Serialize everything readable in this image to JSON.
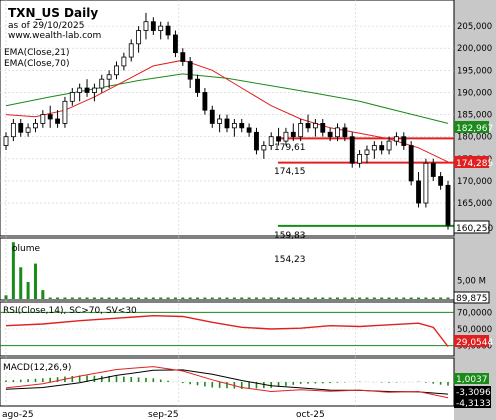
{
  "header": {
    "title": "TXN_US Daily",
    "date": "as of 29/10/2025",
    "site": "www.wealth-lab.com"
  },
  "price_panel": {
    "legend": [
      "EMA(Close,21)",
      "EMA(Close,70)"
    ],
    "annotations": [
      "179,61",
      "174,15",
      "159,83"
    ],
    "axis_ticks": [
      "205,000",
      "200,000",
      "195,000",
      "190,000",
      "185,000",
      "180,000",
      "175,000",
      "170,000",
      "165,000"
    ],
    "price_tags": [
      {
        "label": "182,967",
        "color": "#1a8a1a"
      },
      {
        "label": "174,285",
        "color": "#e02020"
      },
      {
        "label": "160,250",
        "color": "#000000"
      }
    ],
    "colors": {
      "ema21": "#e02020",
      "ema70": "#1a8a1a",
      "level_line_red": "#e02020",
      "level_line_green": "#1a8a1a",
      "candle": "#000000"
    }
  },
  "volume_panel": {
    "label": "olume",
    "annotation": "154,23",
    "axis_ticks": [
      "5,00 M"
    ],
    "tag": "89,875"
  },
  "rsi_panel": {
    "label": "RSI(Close,14), SC>70, SV<30",
    "axis_ticks": [
      "70,0000",
      "50,0000",
      "30,0000"
    ],
    "tag": "29,0544",
    "colors": {
      "line": "#e02020",
      "bands": "#1a8a1a"
    }
  },
  "macd_panel": {
    "label": "MACD(12,26,9)",
    "tags": [
      {
        "label": "1,0037",
        "color": "#1a8a1a"
      },
      {
        "label": "-3,3096",
        "color": "#ffffff"
      },
      {
        "label": "-4,3133",
        "color": "#ffffff"
      }
    ]
  },
  "x_axis": {
    "labels": [
      "ago-25",
      "sep-25",
      "oct-25"
    ]
  },
  "chart_data": {
    "type": "candlestick",
    "title": "TXN_US Daily",
    "y_range": [
      158,
      210
    ],
    "candles": [
      [
        178,
        181,
        177,
        180
      ],
      [
        180,
        184,
        179,
        183
      ],
      [
        183,
        184,
        180,
        181
      ],
      [
        181,
        183,
        180,
        182
      ],
      [
        182,
        184,
        181,
        183
      ],
      [
        183,
        186,
        182,
        185
      ],
      [
        185,
        187,
        182,
        184
      ],
      [
        184,
        186,
        182,
        183
      ],
      [
        183,
        189,
        182,
        188
      ],
      [
        188,
        191,
        187,
        190
      ],
      [
        190,
        192,
        188,
        191
      ],
      [
        191,
        193,
        189,
        190
      ],
      [
        190,
        192,
        188,
        191
      ],
      [
        191,
        194,
        190,
        193
      ],
      [
        193,
        195,
        191,
        194
      ],
      [
        194,
        197,
        193,
        196
      ],
      [
        196,
        199,
        195,
        198
      ],
      [
        198,
        202,
        197,
        201
      ],
      [
        201,
        205,
        199,
        204
      ],
      [
        204,
        208,
        202,
        206
      ],
      [
        206,
        207,
        203,
        204
      ],
      [
        204,
        206,
        202,
        205
      ],
      [
        205,
        206,
        202,
        203
      ],
      [
        203,
        204,
        198,
        199
      ],
      [
        199,
        200,
        196,
        197
      ],
      [
        197,
        198,
        191,
        193
      ],
      [
        193,
        194,
        189,
        190
      ],
      [
        190,
        191,
        185,
        186
      ],
      [
        186,
        187,
        182,
        183
      ],
      [
        183,
        185,
        181,
        184
      ],
      [
        184,
        185,
        181,
        182
      ],
      [
        182,
        184,
        180,
        183
      ],
      [
        183,
        184,
        181,
        182
      ],
      [
        182,
        183,
        180,
        181
      ],
      [
        181,
        182,
        176,
        177
      ],
      [
        177,
        179,
        175,
        178
      ],
      [
        178,
        181,
        177,
        180
      ],
      [
        180,
        182,
        178,
        179
      ],
      [
        179,
        182,
        178,
        181
      ],
      [
        181,
        183,
        179,
        180
      ],
      [
        180,
        184,
        179,
        183
      ],
      [
        183,
        185,
        181,
        182
      ],
      [
        182,
        184,
        180,
        183
      ],
      [
        183,
        184,
        180,
        181
      ],
      [
        181,
        182,
        179,
        180
      ],
      [
        180,
        183,
        179,
        182
      ],
      [
        182,
        183,
        179,
        180
      ],
      [
        180,
        181,
        173,
        174
      ],
      [
        174,
        177,
        173,
        176
      ],
      [
        176,
        178,
        174,
        177
      ],
      [
        177,
        179,
        175,
        178
      ],
      [
        178,
        179,
        176,
        177
      ],
      [
        177,
        180,
        176,
        179
      ],
      [
        179,
        181,
        178,
        180
      ],
      [
        180,
        181,
        177,
        178
      ],
      [
        178,
        179,
        169,
        170
      ],
      [
        170,
        172,
        164,
        165
      ],
      [
        165,
        175,
        164,
        174
      ],
      [
        174,
        175,
        170,
        171
      ],
      [
        171,
        172,
        168,
        169
      ],
      [
        169,
        170,
        159,
        160
      ]
    ],
    "ema21": [
      [
        0,
        185
      ],
      [
        4,
        184.5
      ],
      [
        8,
        186
      ],
      [
        12,
        189
      ],
      [
        16,
        192.5
      ],
      [
        20,
        196
      ],
      [
        24,
        197.3
      ],
      [
        28,
        195
      ],
      [
        32,
        191
      ],
      [
        36,
        187
      ],
      [
        40,
        184
      ],
      [
        44,
        182
      ],
      [
        48,
        180.8
      ],
      [
        52,
        179.5
      ],
      [
        56,
        177.5
      ],
      [
        60,
        174.3
      ]
    ],
    "ema70": [
      [
        0,
        187
      ],
      [
        6,
        189
      ],
      [
        12,
        190.8
      ],
      [
        18,
        192.7
      ],
      [
        24,
        194.2
      ],
      [
        30,
        193.2
      ],
      [
        36,
        191.5
      ],
      [
        42,
        189.8
      ],
      [
        48,
        188
      ],
      [
        54,
        185.5
      ],
      [
        60,
        183
      ]
    ],
    "levels": [
      {
        "value": 179.61,
        "color": "#e02020"
      },
      {
        "value": 174.15,
        "color": "#e02020"
      },
      {
        "value": 159.83,
        "color": "#1a8a1a"
      }
    ],
    "volume": [
      [
        0,
        1.0
      ],
      [
        1,
        15.4
      ],
      [
        2,
        8.6
      ],
      [
        3,
        4.6
      ],
      [
        4,
        9.6
      ],
      [
        5,
        2.4
      ],
      [
        6,
        0.4
      ],
      [
        7,
        0.4
      ],
      [
        8,
        0.4
      ],
      [
        9,
        0.4
      ],
      [
        10,
        0.4
      ],
      [
        11,
        0.4
      ],
      [
        12,
        0.4
      ],
      [
        13,
        0.4
      ],
      [
        14,
        0.4
      ],
      [
        15,
        0.4
      ],
      [
        16,
        0.4
      ],
      [
        17,
        0.4
      ],
      [
        18,
        0.4
      ],
      [
        19,
        0.4
      ],
      [
        20,
        0.4
      ],
      [
        21,
        0.4
      ],
      [
        22,
        0.4
      ],
      [
        23,
        0.4
      ],
      [
        24,
        0.4
      ],
      [
        25,
        0.4
      ],
      [
        26,
        0.4
      ],
      [
        27,
        0.4
      ],
      [
        28,
        0.4
      ],
      [
        29,
        0.4
      ],
      [
        30,
        0.4
      ],
      [
        31,
        0.4
      ],
      [
        32,
        0.4
      ],
      [
        33,
        0.4
      ],
      [
        34,
        0.4
      ],
      [
        35,
        0.4
      ],
      [
        36,
        0.4
      ],
      [
        37,
        0.4
      ],
      [
        38,
        0.4
      ],
      [
        39,
        0.4
      ],
      [
        40,
        0.4
      ],
      [
        41,
        0.4
      ],
      [
        42,
        0.4
      ],
      [
        43,
        0.4
      ],
      [
        44,
        0.4
      ],
      [
        45,
        0.4
      ],
      [
        46,
        0.4
      ],
      [
        47,
        0.4
      ],
      [
        48,
        0.4
      ],
      [
        49,
        0.4
      ],
      [
        50,
        0.4
      ],
      [
        51,
        0.4
      ],
      [
        52,
        0.4
      ],
      [
        53,
        0.4
      ],
      [
        54,
        0.4
      ],
      [
        55,
        0.4
      ],
      [
        56,
        0.4
      ],
      [
        57,
        0.4
      ],
      [
        58,
        0.4
      ],
      [
        59,
        0.4
      ],
      [
        60,
        0.4
      ]
    ],
    "volume_range": [
      0,
      16
    ],
    "rsi": [
      [
        0,
        54
      ],
      [
        5,
        56
      ],
      [
        10,
        60
      ],
      [
        15,
        63
      ],
      [
        20,
        66
      ],
      [
        24,
        65
      ],
      [
        28,
        58
      ],
      [
        32,
        52
      ],
      [
        36,
        50
      ],
      [
        40,
        51
      ],
      [
        44,
        54
      ],
      [
        48,
        53
      ],
      [
        52,
        55
      ],
      [
        56,
        57
      ],
      [
        58,
        52
      ],
      [
        60,
        29.05
      ]
    ],
    "rsi_range": [
      20,
      80
    ],
    "macd": [
      [
        0,
        -1.6
      ],
      [
        5,
        -0.5
      ],
      [
        10,
        1.6
      ],
      [
        15,
        3.4
      ],
      [
        20,
        4.2
      ],
      [
        24,
        3.0
      ],
      [
        28,
        0.6
      ],
      [
        32,
        -1.5
      ],
      [
        36,
        -2.6
      ],
      [
        40,
        -2.1
      ],
      [
        44,
        -2.5
      ],
      [
        48,
        -2.2
      ],
      [
        52,
        -2.8
      ],
      [
        56,
        -2.6
      ],
      [
        60,
        -4.3
      ]
    ],
    "macd_signal": [
      [
        0,
        -2.0
      ],
      [
        5,
        -1.5
      ],
      [
        10,
        -0.2
      ],
      [
        15,
        1.8
      ],
      [
        20,
        3.2
      ],
      [
        24,
        3.3
      ],
      [
        28,
        2.1
      ],
      [
        32,
        0.4
      ],
      [
        36,
        -1.0
      ],
      [
        40,
        -1.6
      ],
      [
        44,
        -2.2
      ],
      [
        48,
        -2.3
      ],
      [
        52,
        -2.6
      ],
      [
        56,
        -2.7
      ],
      [
        60,
        -3.3
      ]
    ],
    "macd_range": [
      -6,
      6
    ]
  }
}
